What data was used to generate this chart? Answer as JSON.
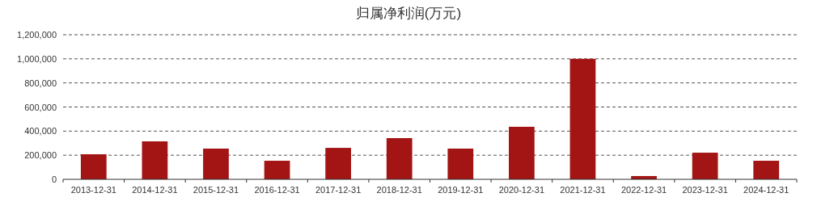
{
  "chart_data": {
    "type": "bar",
    "title": "归属净利润(万元)",
    "categories": [
      "2013-12-31",
      "2014-12-31",
      "2015-12-31",
      "2016-12-31",
      "2017-12-31",
      "2018-12-31",
      "2019-12-31",
      "2020-12-31",
      "2021-12-31",
      "2022-12-31",
      "2023-12-31",
      "2024-12-31"
    ],
    "values": [
      208000,
      315000,
      255000,
      154000,
      261000,
      342000,
      255000,
      436000,
      1000000,
      27000,
      221000,
      154000
    ],
    "color": "#a31515",
    "ylim": [
      0,
      1200000
    ],
    "yticks": [
      {
        "value": 0,
        "label": "0"
      },
      {
        "value": 200000,
        "label": "200,000"
      },
      {
        "value": 400000,
        "label": "400,000"
      },
      {
        "value": 600000,
        "label": "600,000"
      },
      {
        "value": 800000,
        "label": "800,000"
      },
      {
        "value": 1000000,
        "label": "1,000,000"
      },
      {
        "value": 1200000,
        "label": "1,200,000"
      }
    ],
    "grid": "y"
  }
}
